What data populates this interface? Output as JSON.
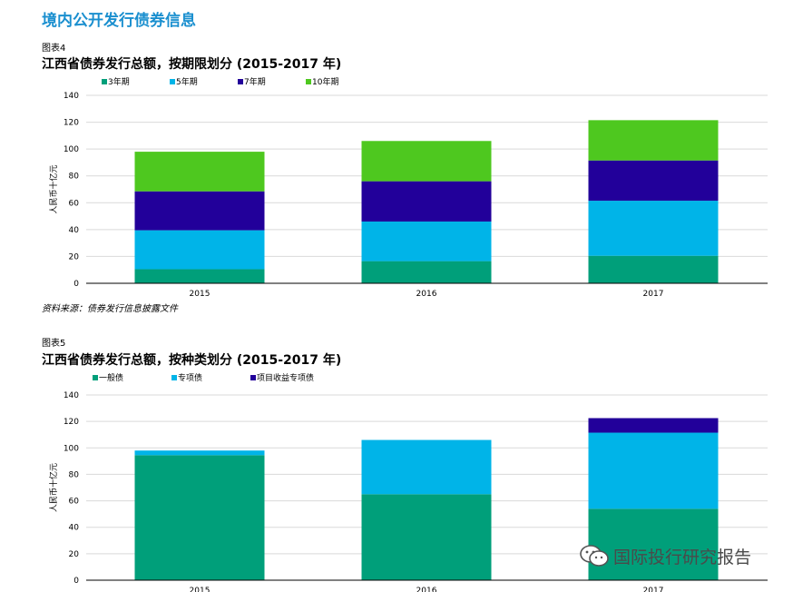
{
  "page": {
    "heading": "境内公开发行债券信息"
  },
  "figure1": {
    "label": "图表4",
    "title": "江西省债券发行总额，按期限划分 (2015-2017 年)",
    "source": "资料来源：债券发行信息披露文件"
  },
  "figure2": {
    "label": "图表5",
    "title": "江西省债券发行总额，按种类划分 (2015-2017 年)"
  },
  "watermark": {
    "text": "国际投行研究报告",
    "icon": "wechat-icon"
  },
  "colors": {
    "teal": "#009f7a",
    "sky": "#00b4e8",
    "navy": "#22009a",
    "lime": "#4ec81f",
    "heading": "#1a8fcf"
  },
  "chart_data": [
    {
      "type": "bar",
      "stacked": true,
      "categories": [
        "2015",
        "2016",
        "2017"
      ],
      "series": [
        {
          "name": "3年期",
          "color": "#009f7a",
          "values": [
            10.5,
            16.5,
            20.5
          ]
        },
        {
          "name": "5年期",
          "color": "#00b4e8",
          "values": [
            29,
            29.5,
            41
          ]
        },
        {
          "name": "7年期",
          "color": "#22009a",
          "values": [
            29,
            30,
            30
          ]
        },
        {
          "name": "10年期",
          "color": "#4ec81f",
          "values": [
            29.5,
            30,
            30
          ]
        }
      ],
      "ylabel": "人民币十亿元",
      "ylim": [
        0,
        140
      ],
      "yticks": [
        "0",
        "20",
        "40",
        "60",
        "80",
        "100",
        "120",
        "140"
      ],
      "grid": true,
      "legend": "top-left"
    },
    {
      "type": "bar",
      "stacked": true,
      "categories": [
        "2015",
        "2016",
        "2017"
      ],
      "series": [
        {
          "name": "一般债",
          "color": "#009f7a",
          "values": [
            94.5,
            65,
            54
          ]
        },
        {
          "name": "专项债",
          "color": "#00b4e8",
          "values": [
            3.5,
            41,
            57.5
          ]
        },
        {
          "name": "项目收益专项债",
          "color": "#22009a",
          "values": [
            0,
            0,
            11
          ]
        }
      ],
      "ylabel": "人民币十亿元",
      "ylim": [
        0,
        140
      ],
      "yticks": [
        "0",
        "20",
        "40",
        "60",
        "80",
        "100",
        "120",
        "140"
      ],
      "grid": true,
      "legend": "top-left"
    }
  ]
}
